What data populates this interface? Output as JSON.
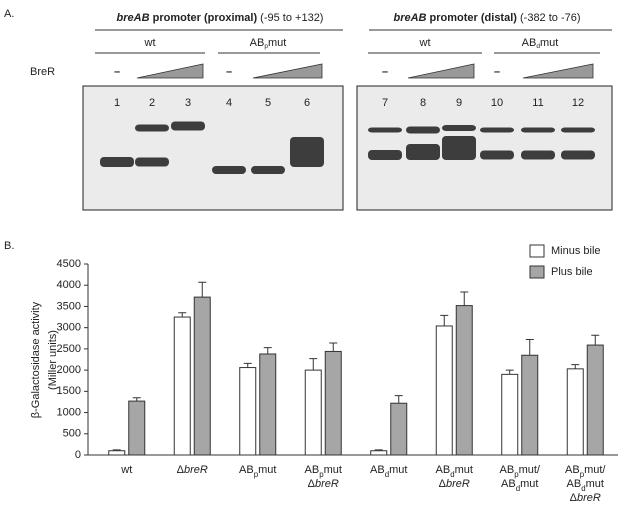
{
  "panel_a": {
    "label": "A.",
    "stimulus": "BreR",
    "gels": [
      {
        "title": [
          {
            "text": "breAB",
            "style": "bold-italic"
          },
          {
            "text": " promoter (proximal)",
            "style": "bold"
          },
          " (-95 to +132)"
        ],
        "groups": [
          {
            "label": [
              "wt"
            ],
            "control": "–"
          },
          {
            "label": [
              "AB",
              {
                "text": "p",
                "style": "sub"
              },
              "mut"
            ],
            "control": "–"
          }
        ],
        "lanes": [
          "1",
          "2",
          "3",
          "4",
          "5",
          "6"
        ]
      },
      {
        "title": [
          {
            "text": "breAB",
            "style": "bold-italic"
          },
          {
            "text": " promoter (distal)",
            "style": "bold"
          },
          " (-382 to -76)"
        ],
        "groups": [
          {
            "label": [
              "wt"
            ],
            "control": "–"
          },
          {
            "label": [
              "AB",
              {
                "text": "d",
                "style": "sub"
              },
              "mut"
            ],
            "control": "–"
          }
        ],
        "lanes": [
          "7",
          "8",
          "9",
          "10",
          "11",
          "12"
        ]
      }
    ]
  },
  "chart_data": {
    "type": "bar",
    "panel_label": "B.",
    "y_label": [
      "β-Galactosidase activity",
      "(Miller units)"
    ],
    "categories": [
      [
        [
          "wt"
        ]
      ],
      [
        [
          "Δ",
          {
            "text": "breR",
            "style": "italic"
          }
        ]
      ],
      [
        [
          "AB",
          {
            "text": "p",
            "style": "sub"
          },
          "mut"
        ]
      ],
      [
        [
          "AB",
          {
            "text": "p",
            "style": "sub"
          },
          "mut"
        ],
        [
          "Δ",
          {
            "text": "breR",
            "style": "italic"
          }
        ]
      ],
      [
        [
          "AB",
          {
            "text": "d",
            "style": "sub"
          },
          "mut"
        ]
      ],
      [
        [
          "AB",
          {
            "text": "d",
            "style": "sub"
          },
          "mut"
        ],
        [
          "Δ",
          {
            "text": "breR",
            "style": "italic"
          }
        ]
      ],
      [
        [
          "AB",
          {
            "text": "p",
            "style": "sub"
          },
          "mut/"
        ],
        [
          "AB",
          {
            "text": "d",
            "style": "sub"
          },
          "mut"
        ]
      ],
      [
        [
          "AB",
          {
            "text": "p",
            "style": "sub"
          },
          "mut/"
        ],
        [
          "AB",
          {
            "text": "d",
            "style": "sub"
          },
          "mut"
        ],
        [
          "Δ",
          {
            "text": "breR",
            "style": "italic"
          }
        ]
      ]
    ],
    "series": [
      {
        "name": "Minus bile",
        "color": "#ffffff",
        "values": [
          100,
          3250,
          2060,
          2000,
          100,
          3040,
          1900,
          2030
        ],
        "errors": [
          20,
          100,
          100,
          270,
          20,
          250,
          100,
          100
        ]
      },
      {
        "name": "Plus bile",
        "color": "#a6a6a6",
        "values": [
          1270,
          3720,
          2380,
          2440,
          1220,
          3520,
          2350,
          2590
        ],
        "errors": [
          80,
          350,
          150,
          200,
          180,
          320,
          370,
          230
        ]
      }
    ],
    "ylim": [
      0,
      4500
    ],
    "yticks": [
      0,
      500,
      1000,
      1500,
      2000,
      2500,
      3000,
      3500,
      4000,
      4500
    ],
    "legend": "top-right"
  }
}
